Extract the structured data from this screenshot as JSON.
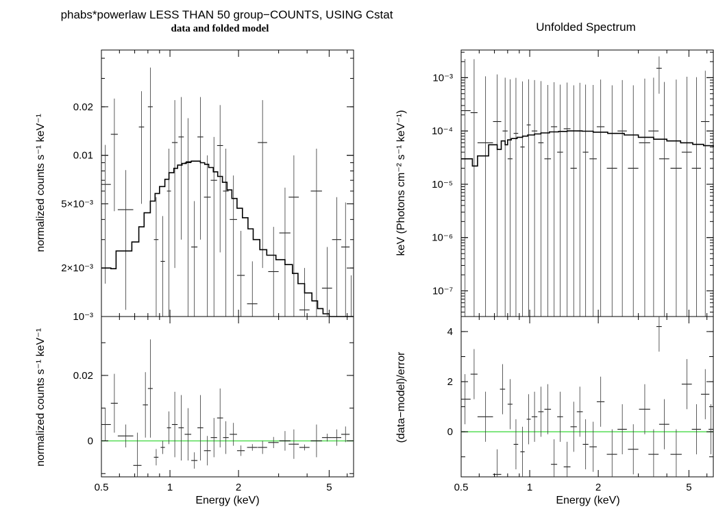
{
  "figure": {
    "title": "phabs*powerlaw LESS THAN 50 group−COUNTS, USING Cstat",
    "subtitle": "data and folded model",
    "right_title": "Unfolded Spectrum"
  },
  "chart_data": [
    {
      "type": "line",
      "panel": "left-top",
      "title": "phabs*powerlaw LESS THAN 50 group−COUNTS, USING Cstat",
      "subtitle": "data and folded model",
      "xlabel": "",
      "ylabel": "normalized counts s⁻¹ keV⁻¹",
      "xscale": "log",
      "yscale": "log",
      "xlim": [
        0.5,
        6.4
      ],
      "ylim": [
        0.001,
        0.045
      ],
      "yticks": [
        {
          "v": 0.001,
          "label": "10⁻³"
        },
        {
          "v": 0.002,
          "label": "2×10⁻³"
        },
        {
          "v": 0.005,
          "label": "5×10⁻³"
        },
        {
          "v": 0.01,
          "label": "0.01"
        },
        {
          "v": 0.02,
          "label": "0.02"
        }
      ],
      "data": [
        [
          0.52,
          0.03,
          0.0066,
          0.005
        ],
        [
          0.57,
          0.02,
          0.0135,
          0.009
        ],
        [
          0.64,
          0.05,
          0.0046,
          0.0035
        ],
        [
          0.75,
          0.02,
          0.015,
          0.01
        ],
        [
          0.82,
          0.02,
          0.02,
          0.015
        ],
        [
          0.87,
          0.02,
          0.003,
          0.0025
        ],
        [
          0.93,
          0.02,
          0.0022,
          0.002
        ],
        [
          0.99,
          0.02,
          0.006,
          0.005
        ],
        [
          1.05,
          0.03,
          0.012,
          0.01
        ],
        [
          1.12,
          0.03,
          0.013,
          0.01
        ],
        [
          1.2,
          0.04,
          0.009,
          0.008
        ],
        [
          1.28,
          0.04,
          0.0027,
          0.0025
        ],
        [
          1.36,
          0.04,
          0.013,
          0.01
        ],
        [
          1.46,
          0.05,
          0.0055,
          0.0045
        ],
        [
          1.56,
          0.05,
          0.007,
          0.006
        ],
        [
          1.66,
          0.05,
          0.0115,
          0.009
        ],
        [
          1.76,
          0.05,
          0.006,
          0.005
        ],
        [
          1.9,
          0.07,
          0.004,
          0.0035
        ],
        [
          2.05,
          0.08,
          0.0018,
          0.0016
        ],
        [
          2.3,
          0.12,
          0.0012,
          0.001
        ],
        [
          2.55,
          0.12,
          0.012,
          0.01
        ],
        [
          2.85,
          0.15,
          0.0019,
          0.0017
        ],
        [
          3.2,
          0.18,
          0.0033,
          0.003
        ],
        [
          3.5,
          0.18,
          0.0055,
          0.0045
        ],
        [
          3.9,
          0.2,
          0.0011,
          0.0009
        ],
        [
          4.4,
          0.25,
          0.006,
          0.005
        ],
        [
          4.9,
          0.25,
          0.0015,
          0.0012
        ],
        [
          5.4,
          0.25,
          0.003,
          0.0025
        ],
        [
          5.9,
          0.25,
          0.0027,
          0.0024
        ],
        [
          6.25,
          0.15,
          0.001,
          0.0008
        ]
      ],
      "model_step": [
        [
          0.5,
          0.002
        ],
        [
          0.55,
          0.00198
        ],
        [
          0.58,
          0.00255
        ],
        [
          0.68,
          0.0029
        ],
        [
          0.73,
          0.0036
        ],
        [
          0.77,
          0.0044
        ],
        [
          0.82,
          0.0052
        ],
        [
          0.86,
          0.0058
        ],
        [
          0.9,
          0.0064
        ],
        [
          0.95,
          0.0071
        ],
        [
          0.99,
          0.0078
        ],
        [
          1.04,
          0.0083
        ],
        [
          1.08,
          0.0087
        ],
        [
          1.13,
          0.0089
        ],
        [
          1.18,
          0.0091
        ],
        [
          1.24,
          0.0092
        ],
        [
          1.3,
          0.0092
        ],
        [
          1.36,
          0.009
        ],
        [
          1.42,
          0.0088
        ],
        [
          1.48,
          0.0084
        ],
        [
          1.55,
          0.0079
        ],
        [
          1.62,
          0.0074
        ],
        [
          1.7,
          0.0068
        ],
        [
          1.78,
          0.0061
        ],
        [
          1.87,
          0.0054
        ],
        [
          1.97,
          0.0047
        ],
        [
          2.08,
          0.0041
        ],
        [
          2.2,
          0.0035
        ],
        [
          2.32,
          0.003
        ],
        [
          2.48,
          0.0026
        ],
        [
          2.66,
          0.0024
        ],
        [
          2.92,
          0.00225
        ],
        [
          3.2,
          0.0021
        ],
        [
          3.45,
          0.00185
        ],
        [
          3.65,
          0.0016
        ],
        [
          3.9,
          0.0014
        ],
        [
          4.2,
          0.00125
        ],
        [
          4.45,
          0.00112
        ],
        [
          4.7,
          0.00104
        ],
        [
          5.0,
          0.001
        ]
      ]
    },
    {
      "type": "scatter",
      "panel": "left-bottom",
      "xlabel": "Energy (keV)",
      "ylabel": "normalized counts s⁻¹ keV⁻¹",
      "xscale": "log",
      "yscale": "linear",
      "xlim": [
        0.5,
        6.4
      ],
      "ylim": [
        -0.011,
        0.038
      ],
      "xticks": [
        {
          "v": 0.5,
          "label": "0.5"
        },
        {
          "v": 1,
          "label": "1"
        },
        {
          "v": 2,
          "label": "2"
        },
        {
          "v": 5,
          "label": "5"
        }
      ],
      "yticks": [
        {
          "v": 0,
          "label": "0"
        },
        {
          "v": 0.02,
          "label": "0.02"
        }
      ],
      "zero_line_color": "#55dd55",
      "data": [
        [
          0.52,
          0.03,
          0.005,
          0.005
        ],
        [
          0.57,
          0.02,
          0.0115,
          0.009
        ],
        [
          0.64,
          0.05,
          0.0015,
          0.0035
        ],
        [
          0.72,
          0.03,
          -0.0075,
          0.01
        ],
        [
          0.78,
          0.02,
          0.011,
          0.01
        ],
        [
          0.82,
          0.02,
          0.016,
          0.015
        ],
        [
          0.87,
          0.02,
          -0.005,
          0.0025
        ],
        [
          0.93,
          0.02,
          -0.002,
          0.002
        ],
        [
          0.99,
          0.02,
          0.004,
          0.005
        ],
        [
          1.05,
          0.03,
          0.005,
          0.01
        ],
        [
          1.12,
          0.03,
          0.004,
          0.01
        ],
        [
          1.2,
          0.04,
          0.002,
          0.008
        ],
        [
          1.28,
          0.04,
          -0.006,
          0.0025
        ],
        [
          1.36,
          0.04,
          0.004,
          0.01
        ],
        [
          1.46,
          0.05,
          -0.003,
          0.0045
        ],
        [
          1.56,
          0.05,
          0.001,
          0.006
        ],
        [
          1.66,
          0.05,
          0.007,
          0.009
        ],
        [
          1.76,
          0.05,
          0.001,
          0.005
        ],
        [
          1.9,
          0.07,
          0.002,
          0.0035
        ],
        [
          2.05,
          0.08,
          -0.003,
          0.0016
        ],
        [
          2.3,
          0.12,
          -0.002,
          0.001
        ],
        [
          2.55,
          0.12,
          -0.002,
          0.002
        ],
        [
          2.85,
          0.15,
          -0.0005,
          0.0017
        ],
        [
          3.2,
          0.18,
          0.0,
          0.003
        ],
        [
          3.5,
          0.18,
          -0.001,
          0.0045
        ],
        [
          3.9,
          0.2,
          -0.002,
          0.0009
        ],
        [
          4.4,
          0.25,
          0.0,
          0.005
        ],
        [
          4.9,
          0.25,
          0.001,
          0.0012
        ],
        [
          5.4,
          0.25,
          0.001,
          0.0025
        ],
        [
          5.9,
          0.25,
          0.002,
          0.0024
        ]
      ]
    },
    {
      "type": "line",
      "panel": "right-top",
      "title": "Unfolded Spectrum",
      "xlabel": "",
      "ylabel": "keV (Photons cm⁻² s⁻¹ keV⁻¹)",
      "xscale": "log",
      "yscale": "log",
      "xlim": [
        0.5,
        6.4
      ],
      "ylim": [
        3.3e-08,
        0.0033
      ],
      "yticks": [
        {
          "v": 1e-07,
          "label": "10⁻⁷"
        },
        {
          "v": 1e-06,
          "label": "10⁻⁶"
        },
        {
          "v": 1e-05,
          "label": "10⁻⁵"
        },
        {
          "v": 0.0001,
          "label": "10⁻⁴"
        },
        {
          "v": 0.001,
          "label": "10⁻³"
        }
      ],
      "data": [
        [
          0.52,
          0.03,
          0.00024,
          0.002
        ],
        [
          0.57,
          0.02,
          0.00022,
          0.002
        ],
        [
          0.64,
          0.05,
          6e-05,
          0.001
        ],
        [
          0.72,
          0.03,
          0.00015,
          0.001
        ],
        [
          0.78,
          0.02,
          0.0001,
          0.0009
        ],
        [
          0.82,
          0.02,
          3e-05,
          0.0009
        ],
        [
          0.87,
          0.02,
          9e-05,
          0.0009
        ],
        [
          0.93,
          0.02,
          5e-05,
          0.0008
        ],
        [
          0.99,
          0.02,
          0.00013,
          0.0008
        ],
        [
          1.05,
          0.03,
          0.0001,
          0.0008
        ],
        [
          1.12,
          0.03,
          6e-05,
          0.0008
        ],
        [
          1.2,
          0.04,
          3e-05,
          0.0007
        ],
        [
          1.28,
          0.04,
          0.00012,
          0.0007
        ],
        [
          1.36,
          0.04,
          4e-05,
          0.0007
        ],
        [
          1.46,
          0.05,
          0.00011,
          0.0007
        ],
        [
          1.56,
          0.05,
          2e-05,
          0.0007
        ],
        [
          1.66,
          0.05,
          0.0001,
          0.0007
        ],
        [
          1.76,
          0.05,
          4e-05,
          0.0007
        ],
        [
          1.9,
          0.07,
          3e-05,
          0.0007
        ],
        [
          2.05,
          0.08,
          0.00012,
          0.0008
        ],
        [
          2.3,
          0.12,
          2e-05,
          0.0007
        ],
        [
          2.55,
          0.12,
          0.0001,
          0.0008
        ],
        [
          2.85,
          0.15,
          2e-05,
          0.0007
        ],
        [
          3.2,
          0.18,
          6e-05,
          0.0009
        ],
        [
          3.5,
          0.18,
          0.0001,
          0.0009
        ],
        [
          3.7,
          0.1,
          0.0015,
          0.001
        ],
        [
          3.9,
          0.2,
          3e-05,
          0.0008
        ],
        [
          4.4,
          0.25,
          2e-05,
          0.0009
        ],
        [
          4.9,
          0.25,
          4e-05,
          0.001
        ],
        [
          5.4,
          0.25,
          2e-05,
          0.001
        ],
        [
          5.9,
          0.25,
          0.00015,
          0.0012
        ]
      ],
      "model_step": [
        [
          0.5,
          3e-05
        ],
        [
          0.56,
          2.2e-05
        ],
        [
          0.59,
          3.4e-05
        ],
        [
          0.66,
          5.5e-05
        ],
        [
          0.72,
          4.5e-05
        ],
        [
          0.75,
          6.5e-05
        ],
        [
          0.78,
          5.5e-05
        ],
        [
          0.8,
          6.8e-05
        ],
        [
          0.83,
          7.2e-05
        ],
        [
          0.88,
          7.6e-05
        ],
        [
          0.93,
          8e-05
        ],
        [
          0.98,
          8.4e-05
        ],
        [
          1.05,
          8.8e-05
        ],
        [
          1.12,
          9.2e-05
        ],
        [
          1.22,
          9.6e-05
        ],
        [
          1.34,
          9.8e-05
        ],
        [
          1.46,
          0.0001
        ],
        [
          1.7,
          9.9e-05
        ],
        [
          1.9,
          9.5e-05
        ],
        [
          2.2,
          9e-05
        ],
        [
          2.6,
          8.4e-05
        ],
        [
          3.0,
          7.6e-05
        ],
        [
          3.5,
          7e-05
        ],
        [
          4.0,
          6.5e-05
        ],
        [
          4.6,
          6e-05
        ],
        [
          5.2,
          5.6e-05
        ],
        [
          5.8,
          5.3e-05
        ],
        [
          6.4,
          5e-05
        ]
      ]
    },
    {
      "type": "scatter",
      "panel": "right-bottom",
      "xlabel": "Energy (keV)",
      "ylabel": "(data−model)/error",
      "xscale": "log",
      "yscale": "linear",
      "xlim": [
        0.5,
        6.4
      ],
      "ylim": [
        -1.8,
        4.6
      ],
      "xticks": [
        {
          "v": 0.5,
          "label": "0.5"
        },
        {
          "v": 1,
          "label": "1"
        },
        {
          "v": 2,
          "label": "2"
        },
        {
          "v": 5,
          "label": "5"
        }
      ],
      "yticks": [
        {
          "v": 0,
          "label": "0"
        },
        {
          "v": 2,
          "label": "2"
        },
        {
          "v": 4,
          "label": "4"
        }
      ],
      "zero_line_color": "#55dd55",
      "data": [
        [
          0.52,
          0.03,
          1.3,
          1.0
        ],
        [
          0.57,
          0.02,
          2.3,
          1.0
        ],
        [
          0.64,
          0.05,
          0.6,
          1.0
        ],
        [
          0.72,
          0.03,
          -1.7,
          1.0
        ],
        [
          0.76,
          0.02,
          1.7,
          1.0
        ],
        [
          0.82,
          0.02,
          1.1,
          1.0
        ],
        [
          0.87,
          0.02,
          -0.5,
          1.0
        ],
        [
          0.93,
          0.02,
          -0.8,
          1.0
        ],
        [
          0.99,
          0.02,
          0.5,
          1.0
        ],
        [
          1.05,
          0.03,
          0.6,
          1.0
        ],
        [
          1.12,
          0.03,
          0.8,
          1.0
        ],
        [
          1.2,
          0.04,
          0.9,
          1.0
        ],
        [
          1.28,
          0.04,
          -1.3,
          1.0
        ],
        [
          1.36,
          0.04,
          0.6,
          1.0
        ],
        [
          1.46,
          0.05,
          -1.4,
          1.0
        ],
        [
          1.56,
          0.05,
          0.2,
          1.0
        ],
        [
          1.66,
          0.05,
          0.8,
          1.0
        ],
        [
          1.76,
          0.05,
          -0.5,
          1.0
        ],
        [
          1.9,
          0.07,
          -0.6,
          1.0
        ],
        [
          2.05,
          0.08,
          1.2,
          1.0
        ],
        [
          2.3,
          0.12,
          -0.9,
          1.0
        ],
        [
          2.55,
          0.12,
          0.1,
          1.0
        ],
        [
          2.85,
          0.15,
          -0.7,
          1.0
        ],
        [
          3.2,
          0.18,
          0.9,
          1.0
        ],
        [
          3.5,
          0.18,
          -0.9,
          1.0
        ],
        [
          3.7,
          0.1,
          4.2,
          1.0
        ],
        [
          3.9,
          0.2,
          0.3,
          1.0
        ],
        [
          4.4,
          0.25,
          -0.9,
          1.0
        ],
        [
          4.9,
          0.25,
          1.9,
          1.0
        ],
        [
          5.4,
          0.25,
          0.1,
          1.0
        ],
        [
          5.9,
          0.25,
          1.5,
          1.0
        ],
        [
          6.25,
          0.15,
          0.1,
          1.0
        ]
      ]
    }
  ]
}
